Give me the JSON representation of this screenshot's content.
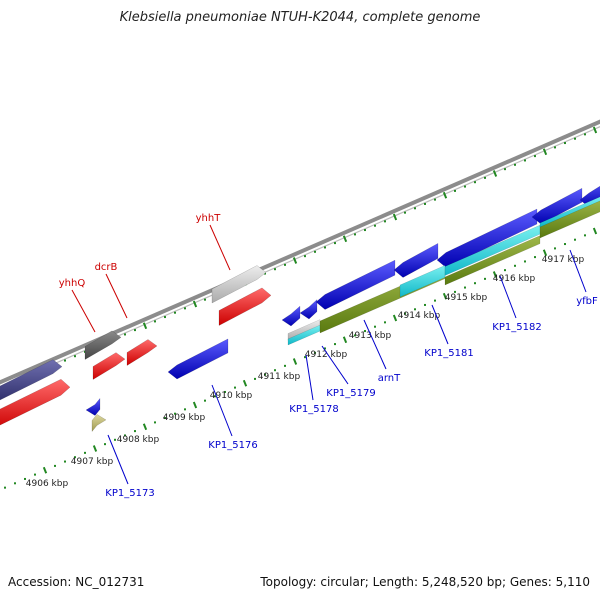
{
  "title": "Klebsiella pneumoniae NTUH-K2044, complete genome",
  "footer": {
    "accession": "Accession: NC_012731",
    "summary": "Topology: circular; Length: 5,248,520 bp; Genes: 5,110"
  },
  "colors": {
    "backbone": "#8c8c8c",
    "ticks": "#228822",
    "forward_label": "#cc0000",
    "reverse_label": "#0000cc",
    "scale_label": "#222222"
  },
  "scale_labels": [
    "4906 kbp",
    "4907 kbp",
    "4908 kbp",
    "4909 kbp",
    "4910 kbp",
    "4911 kbp",
    "4912 kbp",
    "4913 kbp",
    "4914 kbp",
    "4915 kbp",
    "4916 kbp",
    "4917 kbp"
  ],
  "gene_labels_forward": [
    "yhhQ",
    "dcrB",
    "yhhT"
  ],
  "gene_labels_reverse": [
    "KP1_5173",
    "KP1_5176",
    "KP1_5178",
    "KP1_5179",
    "arnT",
    "KP1_5181",
    "KP1_5182",
    "yfbF"
  ]
}
